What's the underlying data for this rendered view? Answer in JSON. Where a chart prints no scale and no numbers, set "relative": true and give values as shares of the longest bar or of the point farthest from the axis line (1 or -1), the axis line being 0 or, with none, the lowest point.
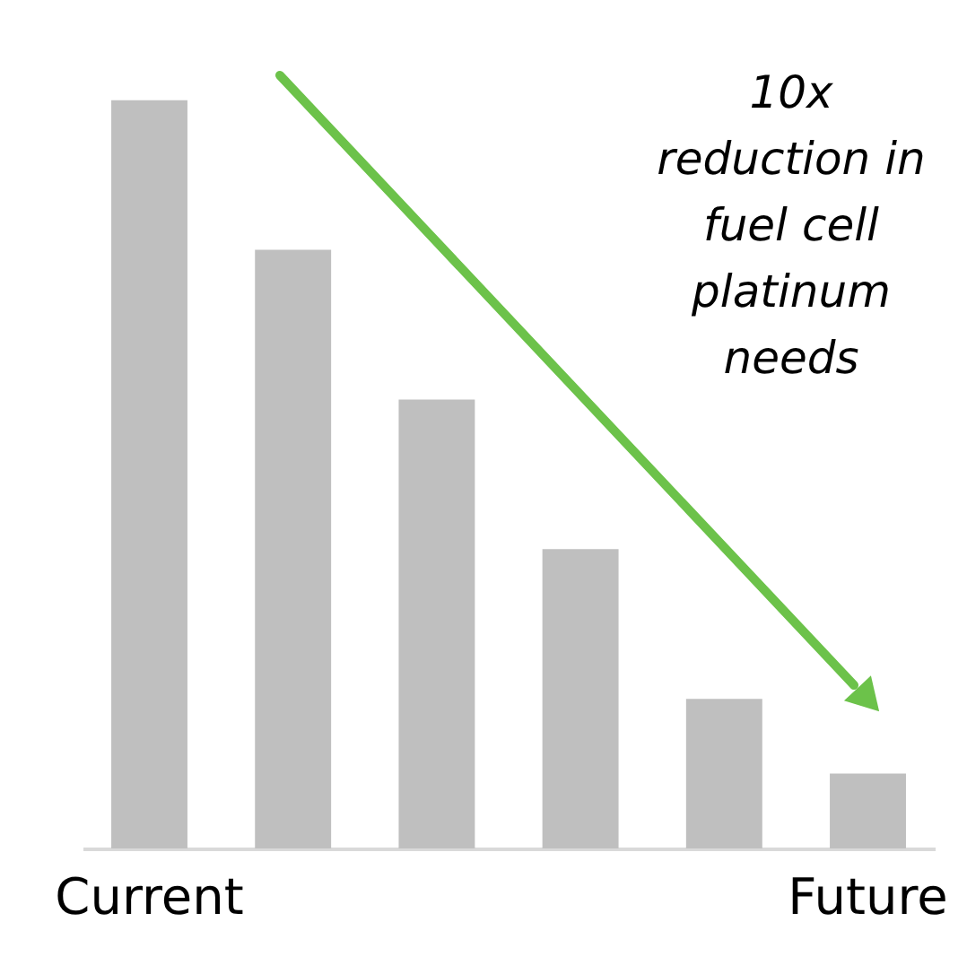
{
  "chart_data": {
    "type": "bar",
    "relative": true,
    "categories": [
      "Current",
      null,
      null,
      null,
      null,
      "Future"
    ],
    "values": [
      1,
      0.8,
      0.6,
      0.4,
      0.2,
      0.1
    ],
    "color": "#bfbfbf",
    "annotations": [
      "10x\nreduction in\nfuel cell\nplatinum\nneeds"
    ],
    "grid": false
  }
}
